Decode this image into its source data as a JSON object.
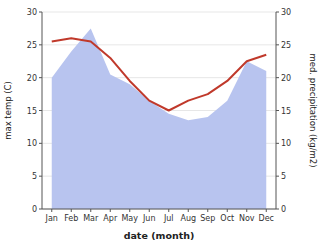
{
  "chart_data": {
    "type": "line",
    "categories": [
      "Jan",
      "Feb",
      "Mar",
      "Apr",
      "May",
      "Jun",
      "Jul",
      "Aug",
      "Sep",
      "Oct",
      "Nov",
      "Dec"
    ],
    "series": [
      {
        "type": "line",
        "color": "#c0392b",
        "values": [
          25.5,
          26.0,
          25.5,
          23.0,
          19.5,
          16.5,
          15.0,
          16.5,
          17.5,
          19.5,
          22.5,
          23.5
        ]
      },
      {
        "type": "area",
        "color": "#b8c4ef",
        "axis": "y2",
        "values": [
          20.0,
          24.0,
          27.5,
          20.5,
          19.0,
          16.5,
          14.5,
          13.5,
          14.0,
          16.5,
          22.5,
          21.0
        ]
      }
    ],
    "xlabel": "date (month)",
    "ylabel": "max temp (C)",
    "y2label": "med. precipitation (kg/m2)",
    "ylim": [
      0,
      30
    ],
    "yticks": [
      0,
      5,
      10,
      15,
      20,
      25,
      30
    ],
    "y2lim": [
      0,
      30
    ],
    "y2ticks": [
      0,
      5,
      10,
      15,
      20,
      25,
      30
    ],
    "grid": true
  }
}
